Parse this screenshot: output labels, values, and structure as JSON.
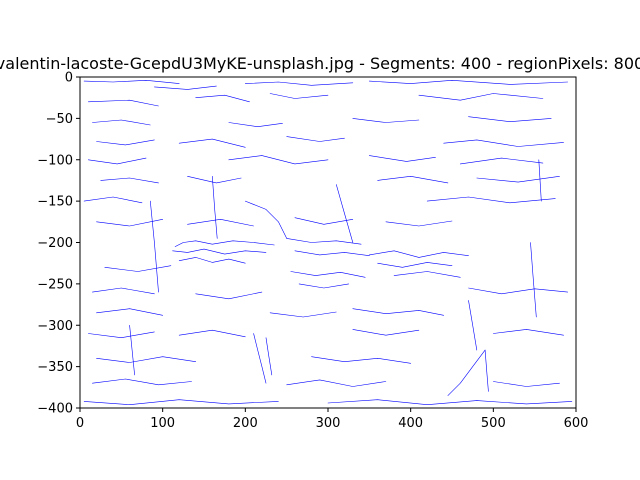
{
  "chart_data": {
    "type": "line",
    "title": "valentin-lacoste-GcepdU3MyKE-unsplash.jpg - Segments: 400 - regionPixels: 800",
    "xlabel": "",
    "ylabel": "",
    "xlim": [
      0,
      600
    ],
    "ylim": [
      -400,
      0
    ],
    "x_ticks": [
      0,
      100,
      200,
      300,
      400,
      500,
      600
    ],
    "y_ticks": [
      0,
      -50,
      -100,
      -150,
      -200,
      -250,
      -300,
      -350,
      -400
    ],
    "grid": false,
    "line_color": "#0000ff",
    "series": [
      {
        "x": [
          5,
          40,
          80,
          120
        ],
        "y": [
          -5,
          -6,
          -4,
          -8
        ]
      },
      {
        "x": [
          90,
          130,
          165
        ],
        "y": [
          -12,
          -15,
          -11
        ]
      },
      {
        "x": [
          200,
          240,
          280,
          330
        ],
        "y": [
          -8,
          -6,
          -10,
          -7
        ]
      },
      {
        "x": [
          350,
          400,
          450,
          520,
          590
        ],
        "y": [
          -5,
          -8,
          -4,
          -9,
          -6
        ]
      },
      {
        "x": [
          10,
          60,
          95
        ],
        "y": [
          -30,
          -28,
          -35
        ]
      },
      {
        "x": [
          140,
          175,
          205
        ],
        "y": [
          -25,
          -22,
          -30
        ]
      },
      {
        "x": [
          230,
          260,
          300
        ],
        "y": [
          -20,
          -26,
          -22
        ]
      },
      {
        "x": [
          410,
          460,
          500,
          560
        ],
        "y": [
          -22,
          -28,
          -20,
          -26
        ]
      },
      {
        "x": [
          15,
          50,
          85
        ],
        "y": [
          -55,
          -52,
          -58
        ]
      },
      {
        "x": [
          180,
          215,
          245
        ],
        "y": [
          -55,
          -60,
          -56
        ]
      },
      {
        "x": [
          330,
          370,
          410
        ],
        "y": [
          -50,
          -55,
          -52
        ]
      },
      {
        "x": [
          470,
          520,
          570
        ],
        "y": [
          -48,
          -54,
          -50
        ]
      },
      {
        "x": [
          20,
          55,
          90
        ],
        "y": [
          -78,
          -82,
          -76
        ]
      },
      {
        "x": [
          120,
          160,
          200
        ],
        "y": [
          -80,
          -75,
          -85
        ]
      },
      {
        "x": [
          250,
          290,
          320
        ],
        "y": [
          -72,
          -78,
          -74
        ]
      },
      {
        "x": [
          440,
          480,
          530,
          585
        ],
        "y": [
          -80,
          -76,
          -84,
          -79
        ]
      },
      {
        "x": [
          10,
          45,
          80
        ],
        "y": [
          -100,
          -105,
          -98
        ]
      },
      {
        "x": [
          180,
          220,
          260,
          300
        ],
        "y": [
          -100,
          -95,
          -105,
          -100
        ]
      },
      {
        "x": [
          350,
          395,
          430
        ],
        "y": [
          -95,
          -102,
          -97
        ]
      },
      {
        "x": [
          460,
          510,
          560
        ],
        "y": [
          -105,
          -98,
          -104
        ]
      },
      {
        "x": [
          25,
          60,
          95
        ],
        "y": [
          -125,
          -122,
          -128
        ]
      },
      {
        "x": [
          130,
          165,
          195
        ],
        "y": [
          -120,
          -128,
          -122
        ]
      },
      {
        "x": [
          360,
          400,
          445
        ],
        "y": [
          -125,
          -120,
          -128
        ]
      },
      {
        "x": [
          480,
          530,
          580
        ],
        "y": [
          -122,
          -127,
          -120
        ]
      },
      {
        "x": [
          5,
          40,
          75
        ],
        "y": [
          -150,
          -145,
          -152
        ]
      },
      {
        "x": [
          200,
          225,
          240,
          250
        ],
        "y": [
          -150,
          -160,
          -175,
          -195
        ]
      },
      {
        "x": [
          310,
          320,
          330
        ],
        "y": [
          -130,
          -165,
          -200
        ]
      },
      {
        "x": [
          420,
          470,
          520,
          575
        ],
        "y": [
          -150,
          -145,
          -152,
          -147
        ]
      },
      {
        "x": [
          20,
          60,
          100
        ],
        "y": [
          -175,
          -180,
          -172
        ]
      },
      {
        "x": [
          130,
          170,
          210
        ],
        "y": [
          -178,
          -172,
          -180
        ]
      },
      {
        "x": [
          260,
          295,
          330
        ],
        "y": [
          -170,
          -178,
          -172
        ]
      },
      {
        "x": [
          370,
          410,
          450
        ],
        "y": [
          -175,
          -180,
          -174
        ]
      },
      {
        "x": [
          115,
          125,
          140,
          160,
          185,
          210,
          235
        ],
        "y": [
          -205,
          -200,
          -198,
          -202,
          -198,
          -200,
          -203
        ]
      },
      {
        "x": [
          112,
          130,
          150,
          175,
          200,
          225
        ],
        "y": [
          -210,
          -212,
          -208,
          -214,
          -210,
          -212
        ]
      },
      {
        "x": [
          120,
          140,
          160,
          180,
          200
        ],
        "y": [
          -222,
          -218,
          -224,
          -220,
          -225
        ]
      },
      {
        "x": [
          250,
          280,
          310,
          340
        ],
        "y": [
          -195,
          -200,
          -198,
          -202
        ]
      },
      {
        "x": [
          260,
          290,
          320,
          350
        ],
        "y": [
          -210,
          -215,
          -212,
          -216
        ]
      },
      {
        "x": [
          350,
          380,
          410,
          440,
          470
        ],
        "y": [
          -215,
          -210,
          -218,
          -212,
          -216
        ]
      },
      {
        "x": [
          360,
          390,
          420,
          450
        ],
        "y": [
          -225,
          -230,
          -224,
          -228
        ]
      },
      {
        "x": [
          255,
          285,
          315,
          345
        ],
        "y": [
          -235,
          -240,
          -236,
          -242
        ]
      },
      {
        "x": [
          265,
          295,
          325
        ],
        "y": [
          -250,
          -255,
          -250
        ]
      },
      {
        "x": [
          380,
          420,
          460
        ],
        "y": [
          -240,
          -235,
          -242
        ]
      },
      {
        "x": [
          30,
          70,
          110
        ],
        "y": [
          -230,
          -235,
          -228
        ]
      },
      {
        "x": [
          15,
          50,
          90
        ],
        "y": [
          -260,
          -255,
          -262
        ]
      },
      {
        "x": [
          140,
          180,
          220
        ],
        "y": [
          -262,
          -268,
          -260
        ]
      },
      {
        "x": [
          470,
          510,
          550,
          590
        ],
        "y": [
          -255,
          -262,
          -256,
          -260
        ]
      },
      {
        "x": [
          20,
          60,
          100
        ],
        "y": [
          -285,
          -280,
          -288
        ]
      },
      {
        "x": [
          230,
          270,
          310
        ],
        "y": [
          -285,
          -290,
          -284
        ]
      },
      {
        "x": [
          330,
          370,
          410,
          440
        ],
        "y": [
          -280,
          -286,
          -282,
          -288
        ]
      },
      {
        "x": [
          470,
          475,
          480
        ],
        "y": [
          -270,
          -300,
          -330
        ]
      },
      {
        "x": [
          10,
          50,
          90
        ],
        "y": [
          -310,
          -315,
          -308
        ]
      },
      {
        "x": [
          120,
          160,
          200
        ],
        "y": [
          -312,
          -306,
          -314
        ]
      },
      {
        "x": [
          330,
          370,
          410
        ],
        "y": [
          -305,
          -312,
          -306
        ]
      },
      {
        "x": [
          500,
          540,
          585
        ],
        "y": [
          -310,
          -305,
          -312
        ]
      },
      {
        "x": [
          210,
          215,
          220,
          225
        ],
        "y": [
          -310,
          -330,
          -350,
          -370
        ]
      },
      {
        "x": [
          225,
          228,
          232
        ],
        "y": [
          -315,
          -335,
          -360
        ]
      },
      {
        "x": [
          20,
          60,
          100,
          140
        ],
        "y": [
          -340,
          -345,
          -338,
          -344
        ]
      },
      {
        "x": [
          280,
          320,
          360,
          400
        ],
        "y": [
          -338,
          -344,
          -340,
          -346
        ]
      },
      {
        "x": [
          445,
          460,
          475,
          490
        ],
        "y": [
          -385,
          -370,
          -350,
          -330
        ]
      },
      {
        "x": [
          490,
          492,
          494
        ],
        "y": [
          -330,
          -355,
          -380
        ]
      },
      {
        "x": [
          15,
          55,
          95,
          135
        ],
        "y": [
          -370,
          -365,
          -372,
          -368
        ]
      },
      {
        "x": [
          250,
          290,
          330,
          370
        ],
        "y": [
          -372,
          -366,
          -374,
          -368
        ]
      },
      {
        "x": [
          500,
          540,
          580
        ],
        "y": [
          -368,
          -374,
          -370
        ]
      },
      {
        "x": [
          5,
          60,
          120,
          180,
          240
        ],
        "y": [
          -392,
          -396,
          -390,
          -395,
          -392
        ]
      },
      {
        "x": [
          300,
          360,
          420,
          480,
          540,
          595
        ],
        "y": [
          -394,
          -390,
          -396,
          -391,
          -395,
          -392
        ]
      },
      {
        "x": [
          85,
          90,
          95
        ],
        "y": [
          -150,
          -200,
          -260
        ]
      },
      {
        "x": [
          160,
          163,
          166
        ],
        "y": [
          -120,
          -160,
          -195
        ]
      },
      {
        "x": [
          545,
          548,
          552
        ],
        "y": [
          -200,
          -240,
          -290
        ]
      },
      {
        "x": [
          60,
          63,
          66
        ],
        "y": [
          -300,
          -330,
          -360
        ]
      },
      {
        "x": [
          555,
          558
        ],
        "y": [
          -100,
          -150
        ]
      }
    ]
  }
}
